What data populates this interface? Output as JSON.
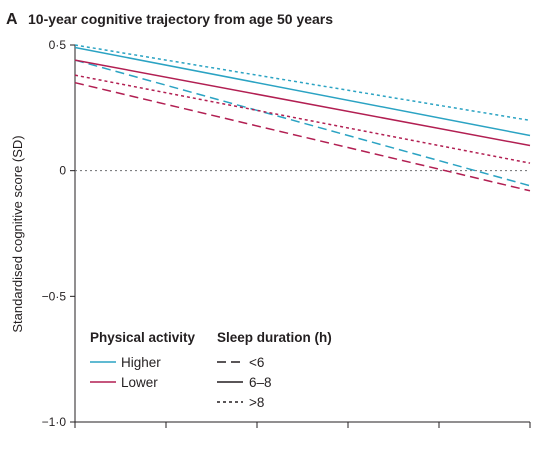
{
  "figure": {
    "panel_letter": "A",
    "title": "10-year cognitive trajectory from age 50 years"
  },
  "chart_data": {
    "type": "line",
    "title": "10-year cognitive trajectory from age 50 years",
    "ylabel": "Standardised cognitive score (SD)",
    "xlabel": "",
    "xlim": [
      0,
      10
    ],
    "ylim": [
      -1.0,
      0.5
    ],
    "x_ticks": [
      0,
      2,
      4,
      6,
      8,
      10
    ],
    "y_ticks": [
      -1.0,
      -0.5,
      0,
      0.5
    ],
    "y_tick_labels": [
      "−1·0",
      "−0·5",
      "0",
      "0·5"
    ],
    "reference_line": {
      "y": 0,
      "style": "dotted",
      "color": "#6d6e71"
    },
    "colors": {
      "Higher": "#2ba3c3",
      "Lower": "#b21f52"
    },
    "series": [
      {
        "activity": "Higher",
        "sleep": "<6",
        "dash": "long",
        "x": [
          0,
          10
        ],
        "y": [
          0.44,
          -0.06
        ]
      },
      {
        "activity": "Higher",
        "sleep": "6–8",
        "dash": "solid",
        "x": [
          0,
          10
        ],
        "y": [
          0.49,
          0.14
        ]
      },
      {
        "activity": "Higher",
        "sleep": ">8",
        "dash": "dotted",
        "x": [
          0,
          10
        ],
        "y": [
          0.5,
          0.2
        ]
      },
      {
        "activity": "Lower",
        "sleep": "<6",
        "dash": "long",
        "x": [
          0,
          10
        ],
        "y": [
          0.35,
          -0.08
        ]
      },
      {
        "activity": "Lower",
        "sleep": "6–8",
        "dash": "solid",
        "x": [
          0,
          10
        ],
        "y": [
          0.44,
          0.1
        ]
      },
      {
        "activity": "Lower",
        "sleep": ">8",
        "dash": "dotted",
        "x": [
          0,
          10
        ],
        "y": [
          0.38,
          0.03
        ]
      }
    ],
    "legend": {
      "placement": "bottom-left",
      "activity_title": "Physical activity",
      "activity_items": [
        {
          "label": "Higher",
          "color": "#2ba3c3"
        },
        {
          "label": "Lower",
          "color": "#b21f52"
        }
      ],
      "sleep_title": "Sleep duration (h)",
      "sleep_items": [
        {
          "label": "<6",
          "dash": "long"
        },
        {
          "label": "6–8",
          "dash": "solid"
        },
        {
          "label": ">8",
          "dash": "dotted"
        }
      ]
    }
  }
}
